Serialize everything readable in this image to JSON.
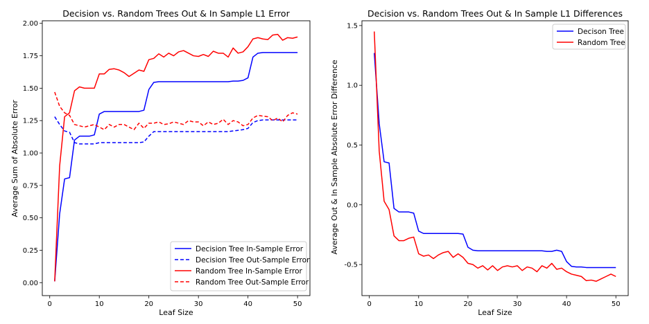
{
  "chart_data": [
    {
      "type": "line",
      "title": "Decision vs. Random Trees Out & In Sample L1 Error",
      "xlabel": "Leaf Size",
      "ylabel": "Average Sum of Absolute Error",
      "xlim": [
        -1.5,
        52.5
      ],
      "ylim": [
        -0.1,
        2.02
      ],
      "xticks": [
        0,
        10,
        20,
        30,
        40,
        50
      ],
      "yticks": [
        0.0,
        0.25,
        0.5,
        0.75,
        1.0,
        1.25,
        1.5,
        1.75,
        2.0
      ],
      "ytick_labels": [
        "0.00",
        "0.25",
        "0.50",
        "0.75",
        "1.00",
        "1.25",
        "1.50",
        "1.75",
        "2.00"
      ],
      "legend_position": "lower-right",
      "grid": false,
      "x": [
        1,
        2,
        3,
        4,
        5,
        6,
        7,
        8,
        9,
        10,
        11,
        12,
        13,
        14,
        15,
        16,
        17,
        18,
        19,
        20,
        21,
        22,
        23,
        24,
        25,
        26,
        27,
        28,
        29,
        30,
        31,
        32,
        33,
        34,
        35,
        36,
        37,
        38,
        39,
        40,
        41,
        42,
        43,
        44,
        45,
        46,
        47,
        48,
        49,
        50
      ],
      "series": [
        {
          "name": "Decision Tree In-Sample Error",
          "color": "#0000ff",
          "dash": "solid",
          "values": [
            0.01,
            0.53,
            0.8,
            0.81,
            1.1,
            1.13,
            1.13,
            1.13,
            1.14,
            1.3,
            1.32,
            1.32,
            1.32,
            1.32,
            1.32,
            1.32,
            1.32,
            1.32,
            1.33,
            1.49,
            1.545,
            1.55,
            1.55,
            1.55,
            1.55,
            1.55,
            1.55,
            1.55,
            1.55,
            1.55,
            1.55,
            1.55,
            1.55,
            1.55,
            1.55,
            1.55,
            1.555,
            1.555,
            1.56,
            1.58,
            1.74,
            1.77,
            1.775,
            1.775,
            1.775,
            1.775,
            1.775,
            1.775,
            1.775,
            1.775
          ]
        },
        {
          "name": "Decision Tree Out-Sample Error",
          "color": "#0000ff",
          "dash": "dashed",
          "values": [
            1.28,
            1.22,
            1.17,
            1.16,
            1.08,
            1.07,
            1.07,
            1.07,
            1.07,
            1.08,
            1.08,
            1.08,
            1.08,
            1.08,
            1.08,
            1.08,
            1.08,
            1.08,
            1.085,
            1.13,
            1.165,
            1.165,
            1.165,
            1.165,
            1.165,
            1.165,
            1.165,
            1.165,
            1.165,
            1.165,
            1.165,
            1.165,
            1.165,
            1.165,
            1.165,
            1.165,
            1.17,
            1.175,
            1.18,
            1.19,
            1.235,
            1.25,
            1.255,
            1.255,
            1.255,
            1.255,
            1.255,
            1.255,
            1.255,
            1.255
          ]
        },
        {
          "name": "Random Tree In-Sample Error",
          "color": "#ff0000",
          "dash": "solid",
          "values": [
            0.01,
            0.9,
            1.28,
            1.31,
            1.48,
            1.51,
            1.5,
            1.5,
            1.5,
            1.61,
            1.61,
            1.645,
            1.65,
            1.64,
            1.62,
            1.59,
            1.615,
            1.64,
            1.63,
            1.72,
            1.73,
            1.765,
            1.74,
            1.77,
            1.75,
            1.78,
            1.79,
            1.77,
            1.75,
            1.745,
            1.76,
            1.745,
            1.785,
            1.77,
            1.77,
            1.74,
            1.81,
            1.77,
            1.78,
            1.82,
            1.88,
            1.89,
            1.88,
            1.875,
            1.91,
            1.915,
            1.87,
            1.89,
            1.885,
            1.895
          ]
        },
        {
          "name": "Random Tree Out-Sample Error",
          "color": "#ff0000",
          "dash": "dashed",
          "values": [
            1.47,
            1.36,
            1.31,
            1.29,
            1.22,
            1.21,
            1.2,
            1.21,
            1.22,
            1.2,
            1.18,
            1.22,
            1.2,
            1.22,
            1.22,
            1.2,
            1.18,
            1.23,
            1.19,
            1.23,
            1.23,
            1.24,
            1.22,
            1.225,
            1.24,
            1.23,
            1.22,
            1.25,
            1.24,
            1.24,
            1.21,
            1.24,
            1.22,
            1.23,
            1.26,
            1.22,
            1.25,
            1.24,
            1.21,
            1.22,
            1.27,
            1.29,
            1.285,
            1.28,
            1.25,
            1.27,
            1.24,
            1.29,
            1.31,
            1.3
          ]
        }
      ]
    },
    {
      "type": "line",
      "title": "Decision vs. Random Trees Out & In Sample L1 Differences",
      "xlabel": "Leaf Size",
      "ylabel": "Average Out & In Sample Absolute Error Difference",
      "xlim": [
        -1.5,
        52.5
      ],
      "ylim": [
        -0.76,
        1.54
      ],
      "xticks": [
        0,
        10,
        20,
        30,
        40,
        50
      ],
      "yticks": [
        -0.5,
        0.0,
        0.5,
        1.0,
        1.5
      ],
      "ytick_labels": [
        "-0.5",
        "0.0",
        "0.5",
        "1.0",
        "1.5"
      ],
      "legend_position": "top-right",
      "grid": false,
      "x": [
        1,
        2,
        3,
        4,
        5,
        6,
        7,
        8,
        9,
        10,
        11,
        12,
        13,
        14,
        15,
        16,
        17,
        18,
        19,
        20,
        21,
        22,
        23,
        24,
        25,
        26,
        27,
        28,
        29,
        30,
        31,
        32,
        33,
        34,
        35,
        36,
        37,
        38,
        39,
        40,
        41,
        42,
        43,
        44,
        45,
        46,
        47,
        48,
        49,
        50
      ],
      "series": [
        {
          "name": "Decison Tree",
          "color": "#0000ff",
          "dash": "solid",
          "values": [
            1.27,
            0.68,
            0.36,
            0.35,
            -0.03,
            -0.06,
            -0.06,
            -0.06,
            -0.07,
            -0.22,
            -0.24,
            -0.24,
            -0.24,
            -0.24,
            -0.24,
            -0.24,
            -0.24,
            -0.24,
            -0.245,
            -0.355,
            -0.38,
            -0.385,
            -0.385,
            -0.385,
            -0.385,
            -0.385,
            -0.385,
            -0.385,
            -0.385,
            -0.385,
            -0.385,
            -0.385,
            -0.385,
            -0.385,
            -0.385,
            -0.39,
            -0.39,
            -0.38,
            -0.39,
            -0.475,
            -0.515,
            -0.52,
            -0.52,
            -0.525,
            -0.525,
            -0.525,
            -0.525,
            -0.525,
            -0.525,
            -0.525
          ]
        },
        {
          "name": "Random Tree",
          "color": "#ff0000",
          "dash": "solid",
          "values": [
            1.45,
            0.45,
            0.03,
            -0.04,
            -0.26,
            -0.3,
            -0.3,
            -0.28,
            -0.27,
            -0.41,
            -0.43,
            -0.42,
            -0.45,
            -0.42,
            -0.4,
            -0.39,
            -0.44,
            -0.41,
            -0.44,
            -0.49,
            -0.5,
            -0.53,
            -0.51,
            -0.545,
            -0.51,
            -0.55,
            -0.52,
            -0.51,
            -0.52,
            -0.51,
            -0.55,
            -0.52,
            -0.53,
            -0.56,
            -0.51,
            -0.53,
            -0.49,
            -0.54,
            -0.53,
            -0.56,
            -0.58,
            -0.59,
            -0.6,
            -0.635,
            -0.63,
            -0.64,
            -0.62,
            -0.6,
            -0.58,
            -0.6
          ]
        }
      ]
    }
  ]
}
